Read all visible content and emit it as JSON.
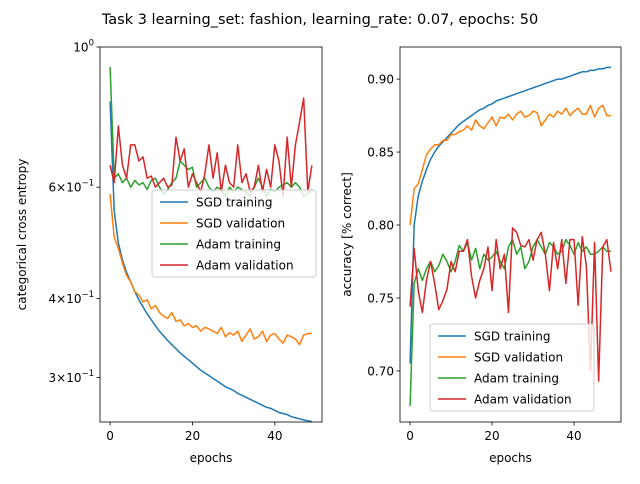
{
  "figure": {
    "title": "Task 3 learning_set: fashion, learning_rate: 0.07, epochs: 50"
  },
  "colors": {
    "sgd_training": "#1f77b4",
    "sgd_validation": "#ff7f0e",
    "adam_training": "#2ca02c",
    "adam_validation": "#d62728"
  },
  "chart_data": [
    {
      "type": "line",
      "xlabel": "epochs",
      "ylabel": "categorical cross entropy",
      "yscale": "log",
      "xlim": [
        -2.45,
        51.45
      ],
      "ylim": [
        0.255,
        1.0
      ],
      "x_ticks": [
        0,
        20,
        40
      ],
      "x_tick_labels": [
        "0",
        "20",
        "40"
      ],
      "y_ticks": [
        1.0,
        0.6,
        0.4,
        0.3
      ],
      "y_tick_labels": [
        {
          "base": "10",
          "exp": "0"
        },
        {
          "base": "6×10",
          "exp": "−1"
        },
        {
          "base": "4×10",
          "exp": "−1"
        },
        {
          "base": "3×10",
          "exp": "−1"
        }
      ],
      "grid": false,
      "legend_position": "center-right",
      "x": [
        0,
        1,
        2,
        3,
        4,
        5,
        6,
        7,
        8,
        9,
        10,
        11,
        12,
        13,
        14,
        15,
        16,
        17,
        18,
        19,
        20,
        21,
        22,
        23,
        24,
        25,
        26,
        27,
        28,
        29,
        30,
        31,
        32,
        33,
        34,
        35,
        36,
        37,
        38,
        39,
        40,
        41,
        42,
        43,
        44,
        45,
        46,
        47,
        48,
        49
      ],
      "series": [
        {
          "name": "SGD training",
          "color_key": "sgd_training",
          "values": [
            0.82,
            0.55,
            0.49,
            0.46,
            0.44,
            0.425,
            0.41,
            0.398,
            0.388,
            0.378,
            0.37,
            0.362,
            0.355,
            0.349,
            0.343,
            0.338,
            0.333,
            0.328,
            0.324,
            0.32,
            0.316,
            0.312,
            0.308,
            0.305,
            0.302,
            0.299,
            0.296,
            0.293,
            0.29,
            0.288,
            0.286,
            0.283,
            0.281,
            0.279,
            0.277,
            0.275,
            0.273,
            0.271,
            0.269,
            0.268,
            0.266,
            0.264,
            0.263,
            0.262,
            0.26,
            0.259,
            0.258,
            0.257,
            0.256,
            0.2555
          ]
        },
        {
          "name": "SGD validation",
          "color_key": "sgd_validation",
          "values": [
            0.585,
            0.5,
            0.48,
            0.455,
            0.435,
            0.425,
            0.41,
            0.405,
            0.395,
            0.398,
            0.385,
            0.39,
            0.38,
            0.375,
            0.372,
            0.38,
            0.368,
            0.37,
            0.362,
            0.365,
            0.36,
            0.362,
            0.355,
            0.36,
            0.358,
            0.355,
            0.352,
            0.36,
            0.348,
            0.353,
            0.35,
            0.355,
            0.342,
            0.35,
            0.358,
            0.345,
            0.348,
            0.355,
            0.342,
            0.35,
            0.352,
            0.345,
            0.34,
            0.35,
            0.348,
            0.345,
            0.338,
            0.35,
            0.352,
            0.352
          ]
        },
        {
          "name": "Adam training",
          "color_key": "adam_training",
          "values": [
            0.93,
            0.62,
            0.63,
            0.61,
            0.62,
            0.6,
            0.615,
            0.605,
            0.61,
            0.595,
            0.615,
            0.62,
            0.6,
            0.585,
            0.595,
            0.61,
            0.62,
            0.66,
            0.65,
            0.64,
            0.645,
            0.6,
            0.61,
            0.62,
            0.6,
            0.59,
            0.6,
            0.595,
            0.58,
            0.6,
            0.59,
            0.6,
            0.595,
            0.59,
            0.58,
            0.6,
            0.62,
            0.6,
            0.58,
            0.595,
            0.59,
            0.6,
            0.605,
            0.61,
            0.6,
            0.61,
            0.6,
            0.58,
            0.585,
            0.595
          ]
        },
        {
          "name": "Adam validation",
          "color_key": "adam_validation",
          "values": [
            0.65,
            0.61,
            0.75,
            0.65,
            0.62,
            0.7,
            0.7,
            0.66,
            0.67,
            0.62,
            0.625,
            0.6,
            0.61,
            0.62,
            0.6,
            0.605,
            0.72,
            0.66,
            0.69,
            0.6,
            0.63,
            0.61,
            0.59,
            0.63,
            0.7,
            0.62,
            0.68,
            0.59,
            0.65,
            0.61,
            0.6,
            0.7,
            0.61,
            0.63,
            0.59,
            0.6,
            0.65,
            0.59,
            0.64,
            0.6,
            0.7,
            0.66,
            0.58,
            0.72,
            0.6,
            0.7,
            0.76,
            0.83,
            0.59,
            0.65
          ]
        }
      ]
    },
    {
      "type": "line",
      "xlabel": "epochs",
      "ylabel": "accuracy [% correct]",
      "yscale": "linear",
      "xlim": [
        -2.45,
        51.45
      ],
      "ylim": [
        0.665,
        0.922
      ],
      "x_ticks": [
        0,
        20,
        40
      ],
      "x_tick_labels": [
        "0",
        "20",
        "40"
      ],
      "y_ticks": [
        0.7,
        0.75,
        0.8,
        0.85,
        0.9
      ],
      "y_tick_labels": [
        "0.70",
        "0.75",
        "0.80",
        "0.85",
        "0.90"
      ],
      "grid": false,
      "legend_position": "lower-right",
      "x": [
        0,
        1,
        2,
        3,
        4,
        5,
        6,
        7,
        8,
        9,
        10,
        11,
        12,
        13,
        14,
        15,
        16,
        17,
        18,
        19,
        20,
        21,
        22,
        23,
        24,
        25,
        26,
        27,
        28,
        29,
        30,
        31,
        32,
        33,
        34,
        35,
        36,
        37,
        38,
        39,
        40,
        41,
        42,
        43,
        44,
        45,
        46,
        47,
        48,
        49
      ],
      "series": [
        {
          "name": "SGD training",
          "color_key": "sgd_training",
          "values": [
            0.705,
            0.8,
            0.82,
            0.83,
            0.838,
            0.845,
            0.85,
            0.854,
            0.857,
            0.86,
            0.863,
            0.866,
            0.869,
            0.871,
            0.873,
            0.875,
            0.877,
            0.879,
            0.88,
            0.882,
            0.883,
            0.885,
            0.886,
            0.887,
            0.888,
            0.889,
            0.89,
            0.891,
            0.892,
            0.893,
            0.894,
            0.895,
            0.896,
            0.897,
            0.898,
            0.899,
            0.9,
            0.9,
            0.901,
            0.902,
            0.903,
            0.904,
            0.905,
            0.905,
            0.906,
            0.906,
            0.907,
            0.907,
            0.908,
            0.908
          ]
        },
        {
          "name": "SGD validation",
          "color_key": "sgd_validation",
          "values": [
            0.8,
            0.825,
            0.828,
            0.838,
            0.848,
            0.852,
            0.855,
            0.855,
            0.858,
            0.858,
            0.862,
            0.862,
            0.864,
            0.865,
            0.868,
            0.865,
            0.872,
            0.868,
            0.866,
            0.87,
            0.874,
            0.868,
            0.874,
            0.873,
            0.876,
            0.872,
            0.876,
            0.878,
            0.874,
            0.875,
            0.878,
            0.877,
            0.868,
            0.872,
            0.876,
            0.874,
            0.878,
            0.876,
            0.88,
            0.875,
            0.878,
            0.88,
            0.876,
            0.876,
            0.882,
            0.874,
            0.88,
            0.882,
            0.875,
            0.875
          ]
        },
        {
          "name": "Adam training",
          "color_key": "adam_training",
          "values": [
            0.676,
            0.76,
            0.77,
            0.762,
            0.77,
            0.775,
            0.768,
            0.772,
            0.78,
            0.775,
            0.768,
            0.775,
            0.786,
            0.782,
            0.788,
            0.776,
            0.784,
            0.77,
            0.78,
            0.776,
            0.778,
            0.782,
            0.775,
            0.77,
            0.785,
            0.79,
            0.78,
            0.785,
            0.77,
            0.775,
            0.785,
            0.79,
            0.785,
            0.78,
            0.788,
            0.785,
            0.78,
            0.782,
            0.79,
            0.786,
            0.78,
            0.788,
            0.782,
            0.785,
            0.78,
            0.78,
            0.782,
            0.785,
            0.782,
            0.782
          ]
        },
        {
          "name": "Adam validation",
          "color_key": "adam_validation",
          "values": [
            0.744,
            0.784,
            0.755,
            0.74,
            0.762,
            0.775,
            0.76,
            0.742,
            0.748,
            0.756,
            0.775,
            0.768,
            0.782,
            0.782,
            0.79,
            0.765,
            0.75,
            0.762,
            0.77,
            0.785,
            0.755,
            0.79,
            0.77,
            0.78,
            0.74,
            0.798,
            0.795,
            0.786,
            0.785,
            0.79,
            0.776,
            0.79,
            0.795,
            0.78,
            0.755,
            0.788,
            0.77,
            0.79,
            0.76,
            0.79,
            0.79,
            0.745,
            0.792,
            0.772,
            0.7,
            0.788,
            0.693,
            0.785,
            0.79,
            0.768
          ]
        }
      ]
    }
  ]
}
